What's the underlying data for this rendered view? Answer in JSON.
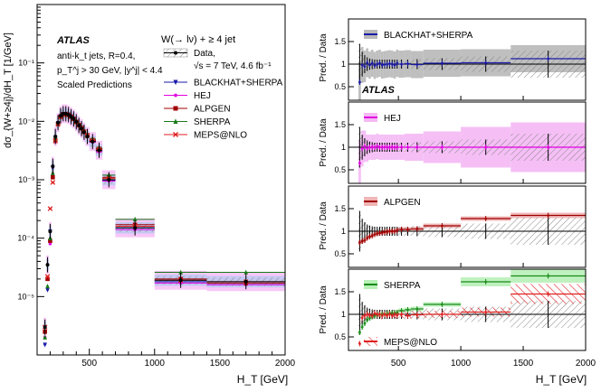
{
  "chart_data": [
    {
      "type": "line",
      "title": "W(→ lν) + ≥ 4 jet",
      "xlabel": "H_T [GeV]",
      "ylabel": "dσ_{W+≥4j}/dH_T [1/GeV]",
      "yscale": "log",
      "xlim": [
        100,
        2000
      ],
      "ylim": [
        1e-06,
        1
      ],
      "xticks": [
        500,
        1000,
        1500,
        2000
      ],
      "yticks": [
        {
          "value": 1e-05,
          "label": "10⁻⁵"
        },
        {
          "value": 0.0001,
          "label": "10⁻⁴"
        },
        {
          "value": 0.001,
          "label": "10⁻³"
        },
        {
          "value": 0.01,
          "label": "10⁻²"
        },
        {
          "value": 0.1,
          "label": "10⁻¹"
        }
      ],
      "annotations": [
        "ATLAS",
        "anti-k_t jets, R=0.4,",
        "p_T^j > 30 GeV, |y^j| < 4.4",
        "Scaled Predictions"
      ],
      "energy_label": "√s = 7 TeV, 4.6 fb⁻¹",
      "data_label": "Data,",
      "bins": [
        [
          150,
          170
        ],
        [
          170,
          190
        ],
        [
          190,
          210
        ],
        [
          210,
          230
        ],
        [
          230,
          250
        ],
        [
          250,
          270
        ],
        [
          270,
          290
        ],
        [
          290,
          310
        ],
        [
          310,
          330
        ],
        [
          330,
          350
        ],
        [
          350,
          370
        ],
        [
          370,
          390
        ],
        [
          390,
          410
        ],
        [
          410,
          430
        ],
        [
          430,
          450
        ],
        [
          450,
          470
        ],
        [
          470,
          500
        ],
        [
          500,
          550
        ],
        [
          550,
          600
        ],
        [
          600,
          700
        ],
        [
          700,
          1000
        ],
        [
          1000,
          1400
        ],
        [
          1400,
          2000
        ]
      ],
      "data": [
        3e-06,
        3.5e-05,
        0.00013,
        0.0017,
        0.0055,
        0.0095,
        0.0125,
        0.0135,
        0.0135,
        0.013,
        0.012,
        0.011,
        0.0098,
        0.0085,
        0.0075,
        0.0065,
        0.0055,
        0.0045,
        0.0032,
        0.001,
        0.00015,
        1.9e-05,
        1.8e-05
      ],
      "series": [
        {
          "name": "BLACKHAT+SHERPA",
          "color": "#1a1aa8",
          "marker": "tri-down",
          "values": [
            1.5e-06,
            1.3e-05,
            0.00013,
            0.0016,
            0.0052,
            0.0093,
            0.0122,
            0.0133,
            0.0134,
            0.0131,
            0.0121,
            0.0111,
            0.0098,
            0.0086,
            0.0076,
            0.0066,
            0.0056,
            0.0046,
            0.0031,
            0.00098,
            0.00015,
            1.8e-05,
            1.6e-05
          ]
        },
        {
          "name": "HEJ",
          "color": "#e000e0",
          "marker": "dot",
          "values": [
            2e-06,
            2e-05,
            8e-05,
            0.0012,
            0.0045,
            0.0088,
            0.0118,
            0.013,
            0.0132,
            0.0128,
            0.0119,
            0.011,
            0.0097,
            0.0085,
            0.0075,
            0.0064,
            0.0054,
            0.0044,
            0.003,
            0.00095,
            0.00014,
            1.7e-05,
            1.6e-05
          ]
        },
        {
          "name": "ALPGEN",
          "color": "#a00000",
          "marker": "square",
          "values": [
            2.5e-06,
            2e-05,
            9e-05,
            0.0011,
            0.0048,
            0.009,
            0.012,
            0.0131,
            0.0133,
            0.0129,
            0.012,
            0.011,
            0.0098,
            0.0086,
            0.0077,
            0.0067,
            0.0058,
            0.0048,
            0.0034,
            0.0011,
            0.00017,
            2e-05,
            1.7e-05
          ]
        },
        {
          "name": "SHERPA",
          "color": "#1a7a1a",
          "marker": "tri-up",
          "values": [
            2e-06,
            1.5e-05,
            0.0001,
            0.0013,
            0.005,
            0.0092,
            0.0121,
            0.0132,
            0.0134,
            0.013,
            0.0121,
            0.0111,
            0.0099,
            0.0088,
            0.0079,
            0.0069,
            0.006,
            0.005,
            0.0035,
            0.0012,
            0.00021,
            2.6e-05,
            2.6e-05
          ]
        },
        {
          "name": "MEPS@NLO",
          "color": "#e02020",
          "marker": "cross",
          "values": [
            3e-06,
            2.2e-05,
            0.00032,
            0.0009,
            0.0046,
            0.0089,
            0.0119,
            0.013,
            0.0132,
            0.0128,
            0.0119,
            0.011,
            0.0097,
            0.0086,
            0.0076,
            0.0066,
            0.0057,
            0.0047,
            0.0033,
            0.00105,
            0.00016,
            1.9e-05,
            1.8e-05
          ]
        }
      ]
    },
    {
      "type": "line",
      "xlabel": "H_T [GeV]",
      "ylabel": "Pred. / Data",
      "xlim": [
        100,
        2000
      ],
      "xticks": [
        500,
        1000,
        1500,
        2000
      ],
      "ylim": [
        0.2,
        2.0
      ],
      "yticks": [
        0.5,
        1,
        1.5
      ],
      "atlas_label": "ATLAS",
      "ratio_bins": [
        [
          180,
          200
        ],
        [
          200,
          220
        ],
        [
          220,
          240
        ],
        [
          240,
          260
        ],
        [
          260,
          280
        ],
        [
          280,
          300
        ],
        [
          300,
          320
        ],
        [
          320,
          340
        ],
        [
          340,
          360
        ],
        [
          360,
          380
        ],
        [
          380,
          400
        ],
        [
          400,
          420
        ],
        [
          420,
          440
        ],
        [
          440,
          460
        ],
        [
          460,
          480
        ],
        [
          480,
          500
        ],
        [
          500,
          550
        ],
        [
          550,
          600
        ],
        [
          600,
          700
        ],
        [
          700,
          1000
        ],
        [
          1000,
          1400
        ],
        [
          1400,
          2000
        ]
      ],
      "data_error": [
        0.9,
        0.55,
        0.4,
        0.3,
        0.25,
        0.22,
        0.2,
        0.2,
        0.2,
        0.2,
        0.2,
        0.2,
        0.2,
        0.2,
        0.2,
        0.2,
        0.2,
        0.2,
        0.22,
        0.26,
        0.34,
        0.6
      ],
      "panels": [
        {
          "name": "BLACKHAT+SHERPA",
          "color": "#1a1aa8",
          "band_color": "#b8b8b8",
          "values": [
            0.6,
            0.98,
            0.95,
            1.03,
            0.98,
            1.02,
            0.97,
            1.0,
            1.02,
            0.98,
            0.99,
            1.0,
            1.01,
            1.0,
            0.98,
            1.02,
            1.0,
            1.01,
            0.99,
            1.02,
            1.03,
            1.12
          ],
          "band_half": [
            0.45,
            0.4,
            0.35,
            0.32,
            0.3,
            0.3,
            0.3,
            0.3,
            0.3,
            0.3,
            0.3,
            0.3,
            0.3,
            0.3,
            0.3,
            0.3,
            0.3,
            0.3,
            0.3,
            0.3,
            0.3,
            0.3
          ]
        },
        {
          "name": "HEJ",
          "color": "#e000e0",
          "band_color": "#f4b8f4",
          "values": [
            0.65,
            0.97,
            1.02,
            0.98,
            1.0,
            1.0,
            1.0,
            1.02,
            1.0,
            1.0,
            1.0,
            1.0,
            1.0,
            1.0,
            1.0,
            1.0,
            1.0,
            1.0,
            1.0,
            1.0,
            1.0,
            1.0
          ],
          "band_half": [
            0.5,
            0.4,
            0.35,
            0.3,
            0.28,
            0.28,
            0.28,
            0.28,
            0.28,
            0.28,
            0.28,
            0.28,
            0.28,
            0.28,
            0.28,
            0.28,
            0.28,
            0.3,
            0.3,
            0.35,
            0.45,
            0.55
          ]
        },
        {
          "name": "ALPGEN",
          "color": "#a00000",
          "band_color": "#f0b4b4",
          "values": [
            0.75,
            0.78,
            0.8,
            0.85,
            0.88,
            0.9,
            0.93,
            0.95,
            0.96,
            0.97,
            0.98,
            0.99,
            1.0,
            1.0,
            1.0,
            1.02,
            1.04,
            1.04,
            1.05,
            1.12,
            1.28,
            1.35
          ],
          "band_half": [
            0.05,
            0.05,
            0.05,
            0.05,
            0.05,
            0.05,
            0.05,
            0.05,
            0.05,
            0.05,
            0.05,
            0.05,
            0.05,
            0.05,
            0.05,
            0.05,
            0.05,
            0.05,
            0.05,
            0.05,
            0.05,
            0.06
          ]
        },
        {
          "name": "SHERPA",
          "color": "#1a8a1a",
          "band_color": "#b8f0b8",
          "name2": "MEPS@NLO",
          "color2": "#e02020",
          "values": [
            0.6,
            0.72,
            0.8,
            0.88,
            0.92,
            0.95,
            0.97,
            0.99,
            1.0,
            1.0,
            1.0,
            1.01,
            1.02,
            1.02,
            1.03,
            1.04,
            1.08,
            1.1,
            1.12,
            1.22,
            1.72,
            1.85
          ],
          "band_half": [
            0.05,
            0.05,
            0.05,
            0.05,
            0.05,
            0.05,
            0.05,
            0.05,
            0.05,
            0.05,
            0.05,
            0.05,
            0.05,
            0.05,
            0.05,
            0.05,
            0.05,
            0.05,
            0.05,
            0.05,
            0.1,
            0.15
          ],
          "values2": [
            0.35,
            0.92,
            0.97,
            1.0,
            0.98,
            0.97,
            1.02,
            1.0,
            1.0,
            0.97,
            1.0,
            0.98,
            1.0,
            0.97,
            1.0,
            0.98,
            1.0,
            0.97,
            0.99,
            1.0,
            1.05,
            1.45
          ],
          "band_half2": [
            0.12,
            0.1,
            0.08,
            0.08,
            0.08,
            0.08,
            0.08,
            0.08,
            0.08,
            0.08,
            0.08,
            0.08,
            0.08,
            0.08,
            0.08,
            0.08,
            0.08,
            0.08,
            0.08,
            0.08,
            0.1,
            0.22
          ]
        }
      ]
    }
  ]
}
